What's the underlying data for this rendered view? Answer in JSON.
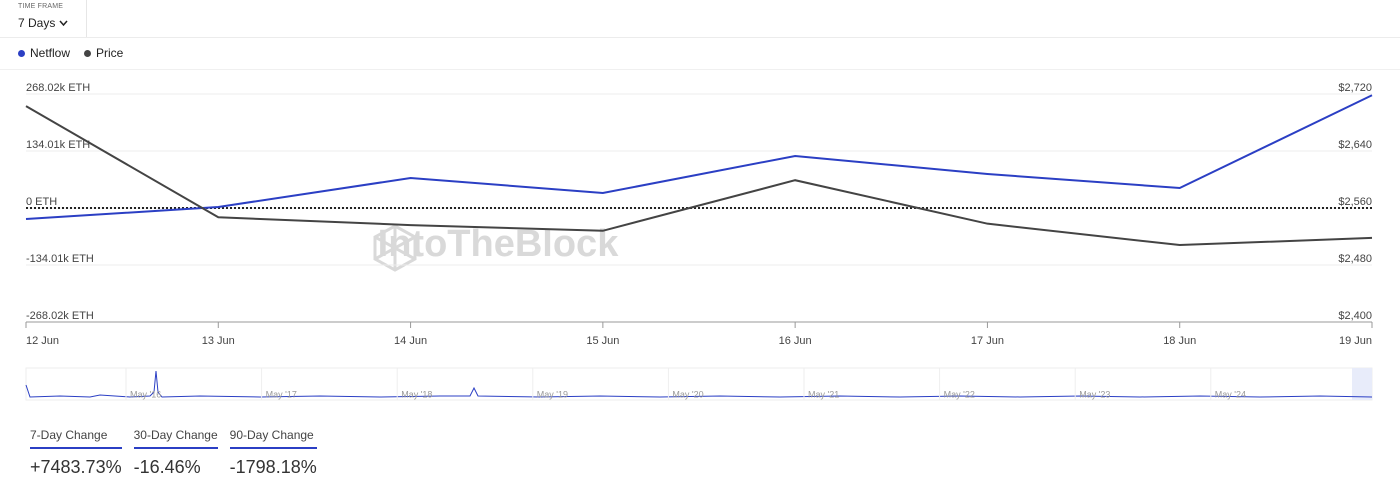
{
  "time_frame": {
    "label": "TIME FRAME",
    "value": "7 Days"
  },
  "watermark": "IntoTheBlock",
  "chart_data": {
    "type": "line",
    "categories": [
      "12 Jun",
      "13 Jun",
      "14 Jun",
      "15 Jun",
      "16 Jun",
      "17 Jun",
      "18 Jun",
      "19 Jun"
    ],
    "series": [
      {
        "name": "Netflow",
        "color": "#2b3fc4",
        "values": [
          -25.9,
          2.4,
          70.5,
          35.3,
          122.3,
          79.9,
          47.0,
          265.0
        ]
      },
      {
        "name": "Price",
        "color": "#444444",
        "axis": "y2",
        "values": [
          2703,
          2547,
          2536,
          2528,
          2599,
          2538,
          2508,
          2518
        ]
      }
    ],
    "ylim": [
      -268.02,
      268.02
    ],
    "yticks": [
      {
        "value": 268.02,
        "label": "268.02k ETH"
      },
      {
        "value": 134.01,
        "label": "134.01k ETH"
      },
      {
        "value": 0,
        "label": "0 ETH"
      },
      {
        "value": -134.01,
        "label": "-134.01k ETH"
      },
      {
        "value": -268.02,
        "label": "-268.02k ETH"
      }
    ],
    "y2lim": [
      2400,
      2720
    ],
    "y2ticks": [
      {
        "value": 2720,
        "label": "$2,720"
      },
      {
        "value": 2640,
        "label": "$2,640"
      },
      {
        "value": 2560,
        "label": "$2,560"
      },
      {
        "value": 2480,
        "label": "$2,480"
      },
      {
        "value": 2400,
        "label": "$2,400"
      }
    ],
    "grid": true
  },
  "navigator": {
    "labels": [
      "May '16",
      "May '17",
      "May '18",
      "May '19",
      "May '20",
      "May '21",
      "May '22",
      "May '23",
      "May '24"
    ]
  },
  "changes": [
    {
      "label": "7-Day Change",
      "value": "+7483.73%"
    },
    {
      "label": "30-Day Change",
      "value": "-16.46%"
    },
    {
      "label": "90-Day Change",
      "value": "-1798.18%"
    }
  ]
}
